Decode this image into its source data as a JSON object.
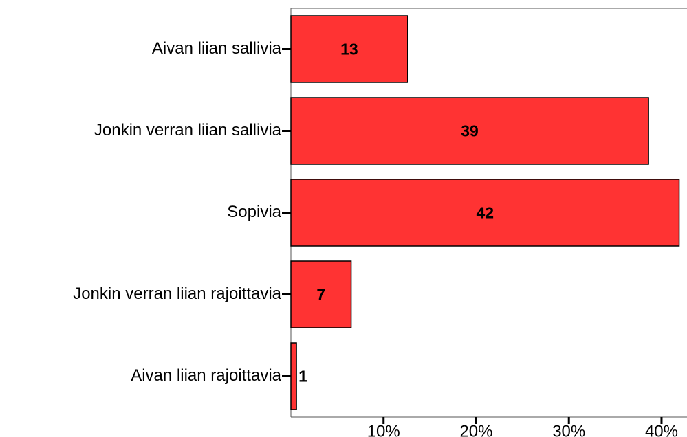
{
  "chart_data": {
    "type": "hbar",
    "categories": [
      "Aivan liian sallivia",
      "Jonkin verran liian sallivia",
      "Sopivia",
      "Jonkin verran liian rajoittavia",
      "Aivan liian rajoittavia"
    ],
    "values": [
      12.6,
      38.6,
      41.9,
      6.5,
      0.6
    ],
    "value_labels": [
      "13",
      "39",
      "42",
      "7",
      "1"
    ],
    "color": "#ff3333",
    "xlim": [
      0,
      42.6
    ],
    "xticks": [
      {
        "value": 10,
        "label": "10%"
      },
      {
        "value": 20,
        "label": "20%"
      },
      {
        "value": 30,
        "label": "30%"
      },
      {
        "value": 40,
        "label": "40%"
      }
    ]
  }
}
